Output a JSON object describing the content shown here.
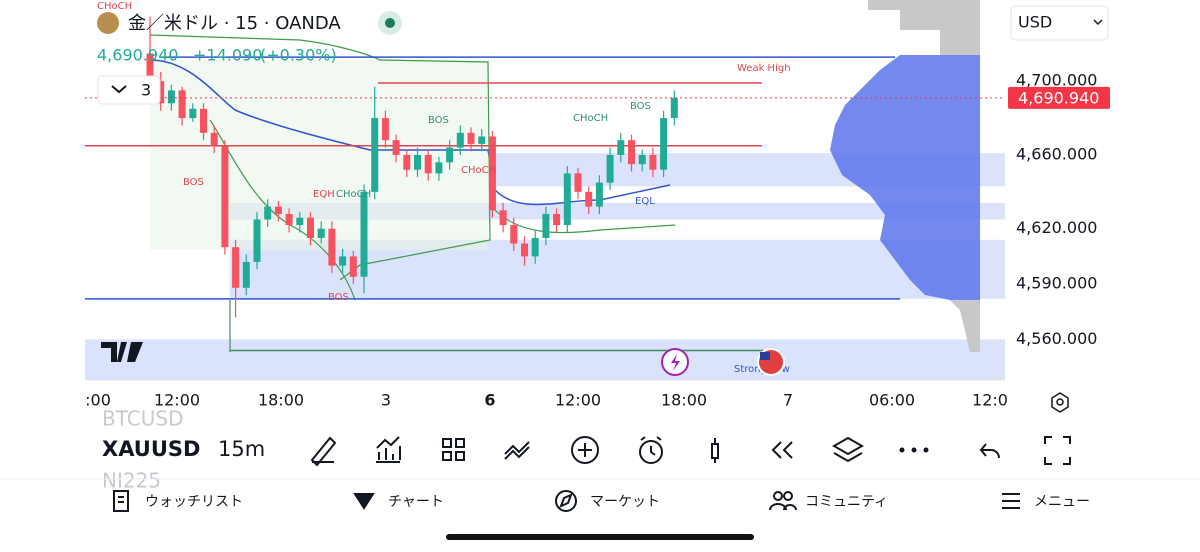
{
  "header": {
    "tag": "CHoCH",
    "symbol_desc": "金／米ドル · 15 · OANDA",
    "last": "4,690.940",
    "change": "+14.090",
    "change_pct": "(+0.30%)",
    "indicator_count": "3",
    "currency": "USD"
  },
  "chart_data": {
    "type": "candlestick",
    "open": [
      4715,
      4700,
      4688,
      4695,
      4680,
      4685,
      4672,
      4665,
      4610,
      4588,
      4602,
      4625,
      4632,
      4628,
      4622,
      4626,
      4615,
      4620,
      4600,
      4605,
      4594,
      4640,
      4680,
      4668,
      4660,
      4652,
      4660,
      4650,
      4656,
      4664,
      4672,
      4666,
      4670,
      4630,
      4622,
      4612,
      4605,
      4615,
      4628,
      4622,
      4650,
      4640,
      4632,
      4645,
      4660,
      4668,
      4655,
      4660,
      4652,
      4680
    ],
    "high": [
      4735,
      4705,
      4698,
      4697,
      4688,
      4688,
      4676,
      4668,
      4614,
      4606,
      4629,
      4636,
      4635,
      4631,
      4629,
      4629,
      4624,
      4624,
      4609,
      4608,
      4644,
      4697,
      4684,
      4671,
      4663,
      4664,
      4663,
      4659,
      4668,
      4676,
      4675,
      4674,
      4673,
      4634,
      4626,
      4616,
      4619,
      4632,
      4631,
      4654,
      4653,
      4643,
      4649,
      4664,
      4672,
      4671,
      4663,
      4664,
      4684,
      4695
    ],
    "low": [
      4690,
      4684,
      4684,
      4676,
      4678,
      4668,
      4661,
      4606,
      4572,
      4584,
      4598,
      4621,
      4624,
      4618,
      4618,
      4611,
      4612,
      4596,
      4596,
      4590,
      4585,
      4636,
      4664,
      4656,
      4648,
      4648,
      4646,
      4646,
      4652,
      4660,
      4662,
      4662,
      4626,
      4618,
      4608,
      4600,
      4601,
      4611,
      4618,
      4618,
      4636,
      4628,
      4628,
      4641,
      4656,
      4651,
      4651,
      4648,
      4648,
      4676
    ],
    "close": [
      4700,
      4688,
      4695,
      4680,
      4685,
      4672,
      4665,
      4610,
      4588,
      4602,
      4625,
      4632,
      4628,
      4622,
      4626,
      4615,
      4620,
      4600,
      4605,
      4594,
      4640,
      4680,
      4668,
      4660,
      4652,
      4660,
      4650,
      4656,
      4664,
      4672,
      4666,
      4670,
      4630,
      4622,
      4612,
      4605,
      4615,
      4628,
      4622,
      4650,
      4640,
      4632,
      4645,
      4660,
      4668,
      4655,
      4660,
      4652,
      4680,
      4690.94
    ],
    "up_color": "#22ab94",
    "down_color": "#f7525f",
    "ylim": [
      4538,
      4744
    ],
    "yticks": [
      {
        "value": 4700,
        "label": "4,700.000"
      },
      {
        "value": 4660,
        "label": "4,660.000"
      },
      {
        "value": 4620,
        "label": "4,620.000"
      },
      {
        "value": 4590,
        "label": "4,590.000"
      },
      {
        "value": 4560,
        "label": "4,560.000"
      }
    ],
    "last_price": {
      "value": 4690.94,
      "label": "4,690.940"
    },
    "x_labels": [
      ":00",
      "12:00",
      "18:00",
      "3",
      "6",
      "12:00",
      "18:00",
      "7",
      "06:00",
      "12:0"
    ],
    "levels": [
      {
        "value": 4713,
        "color": "#2f54d4"
      },
      {
        "value": 4699,
        "color": "#e0464e"
      },
      {
        "value": 4665,
        "color": "#e0464e"
      },
      {
        "value": 4582,
        "color": "#2f54d4"
      },
      {
        "value": 4554,
        "color": "#3f8f5a"
      }
    ],
    "zones": [
      [
        4643,
        4661
      ],
      [
        4625,
        4634
      ],
      [
        4582,
        4614
      ],
      [
        4538,
        4560
      ]
    ],
    "annotations": [
      "Weak High",
      "BOS",
      "EQH",
      "CHoCH",
      "BOS",
      "BOS",
      "CHoCH",
      "CHoCH",
      "BOS",
      "EQL",
      "Strong Low"
    ]
  },
  "toolbar": {
    "prev_symbol": "BTCUSD",
    "symbol": "XAUUSD",
    "next_symbol": "NI225",
    "interval": "15m"
  },
  "nav": [
    "ウォッチリスト",
    "チャート",
    "マーケット",
    "コミュニティ",
    "メニュー"
  ]
}
